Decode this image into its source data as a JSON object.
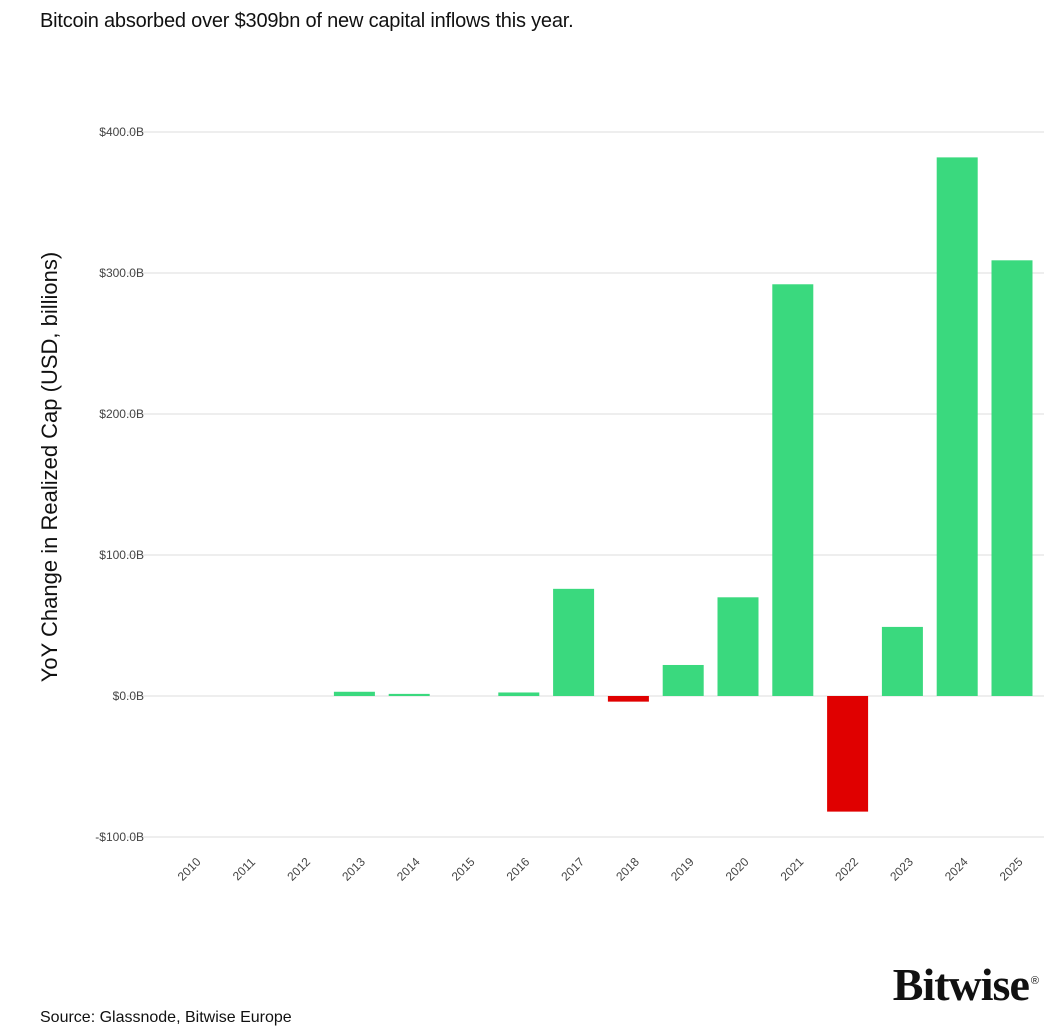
{
  "headline": "Bitcoin absorbed over $309bn of new capital inflows this year.",
  "source": "Source: Glassnode, Bitwise Europe",
  "brand": {
    "name": "Bitwise",
    "mark": "®"
  },
  "colors": {
    "positive": "#3ad97e",
    "negative": "#e00000",
    "grid": "#dcdcdc",
    "tick_text": "#444444"
  },
  "chart_data": {
    "type": "bar",
    "title": "Bitcoin absorbed over $309bn of new capital inflows this year.",
    "xlabel": "",
    "ylabel": "YoY Change in Realized Cap (USD, billions)",
    "ylim": [
      -100,
      400
    ],
    "yticks": [
      {
        "value": 400,
        "label": "$400.0B"
      },
      {
        "value": 300,
        "label": "$300.0B"
      },
      {
        "value": 200,
        "label": "$200.0B"
      },
      {
        "value": 100,
        "label": "$100.0B"
      },
      {
        "value": 0,
        "label": "$0.0B"
      },
      {
        "value": -100,
        "label": "-$100.0B"
      }
    ],
    "grid": true,
    "legend": "none",
    "categories": [
      "2010",
      "2011",
      "2012",
      "2013",
      "2014",
      "2015",
      "2016",
      "2017",
      "2018",
      "2019",
      "2020",
      "2021",
      "2022",
      "2023",
      "2024",
      "2025"
    ],
    "values": [
      0,
      0,
      0,
      3,
      1.5,
      0,
      2.5,
      76,
      -4,
      22,
      70,
      292,
      -82,
      49,
      382,
      309
    ]
  }
}
